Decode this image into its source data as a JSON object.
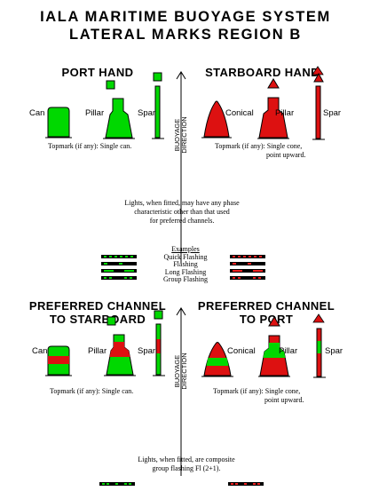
{
  "title": {
    "line1": "IALA MARITIME BUOYAGE SYSTEM",
    "line2": "LATERAL MARKS REGION B"
  },
  "colors": {
    "green": "#00d800",
    "red": "#dd1111",
    "black": "#000000"
  },
  "port_hand": {
    "heading": "PORT HAND",
    "labels": {
      "can": "Can",
      "pillar": "Pillar",
      "spar": "Spar"
    },
    "topmark_note": "Topmark (if any):  Single can."
  },
  "starboard_hand": {
    "heading": "STARBOARD HAND",
    "labels": {
      "conical": "Conical",
      "pillar": "Pillar",
      "spar": "Spar"
    },
    "topmark_note_line1": "Topmark (if any):  Single cone,",
    "topmark_note_line2": "point upward."
  },
  "buoyage_direction": {
    "line1": "BUOYAGE",
    "line2": "DIRECTION"
  },
  "lights_note": {
    "line1": "Lights, when fitted, may have any phase",
    "line2": "characteristic other than that used",
    "line3": "for preferred channels."
  },
  "examples": {
    "heading": "Examples",
    "items": [
      "Quick Flashing",
      "Flashing",
      "Long Flashing",
      "Group Flashing"
    ]
  },
  "preferred_starboard": {
    "heading_line1": "PREFERRED CHANNEL",
    "heading_line2": "TO STARBOARD",
    "labels": {
      "can": "Can",
      "pillar": "Pillar",
      "spar": "Spar"
    },
    "topmark_note": "Topmark (if any):  Single can."
  },
  "preferred_port": {
    "heading_line1": "PREFERRED CHANNEL",
    "heading_line2": "TO PORT",
    "labels": {
      "conical": "Conical",
      "pillar": "Pillar",
      "spar": "Spar"
    },
    "topmark_note_line1": "Topmark (if any):  Single cone,",
    "topmark_note_line2": "point upward."
  },
  "composite_note": {
    "line1": "Lights, when fitted, are composite",
    "line2": "group flashing Fl (2+1)."
  }
}
